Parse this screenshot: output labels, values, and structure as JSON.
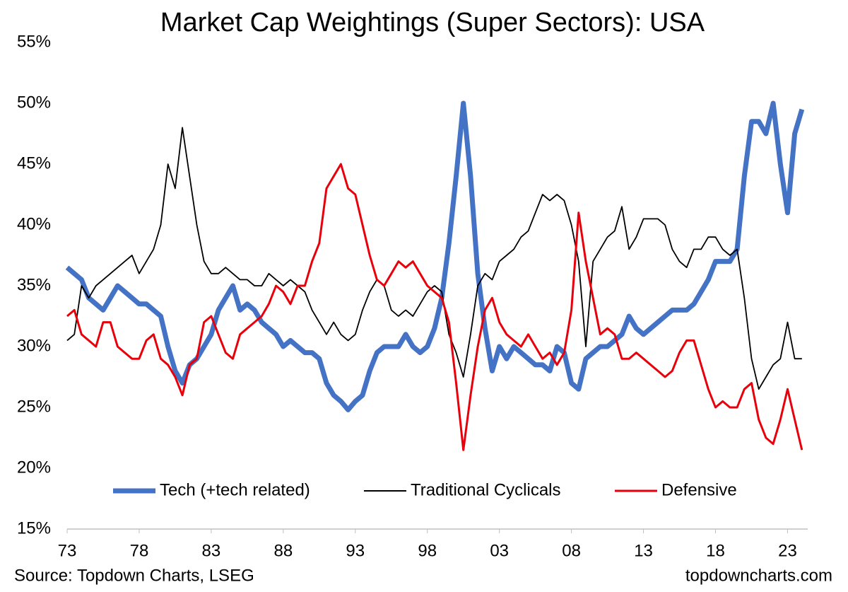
{
  "chart_data": {
    "type": "line",
    "title": "Market Cap Weightings (Super Sectors): USA",
    "source": "Source: Topdown Charts, LSEG",
    "watermark": "topdowncharts.com",
    "x": [
      1973,
      1973.5,
      1974,
      1974.5,
      1975,
      1975.5,
      1976,
      1976.5,
      1977,
      1977.5,
      1978,
      1978.5,
      1979,
      1979.5,
      1980,
      1980.5,
      1981,
      1981.5,
      1982,
      1982.5,
      1983,
      1983.5,
      1984,
      1984.5,
      1985,
      1985.5,
      1986,
      1986.5,
      1987,
      1987.5,
      1988,
      1988.5,
      1989,
      1989.5,
      1990,
      1990.5,
      1991,
      1991.5,
      1992,
      1992.5,
      1993,
      1993.5,
      1994,
      1994.5,
      1995,
      1995.5,
      1996,
      1996.5,
      1997,
      1997.5,
      1998,
      1998.5,
      1999,
      1999.5,
      2000,
      2000.5,
      2001,
      2001.5,
      2002,
      2002.5,
      2003,
      2003.5,
      2004,
      2004.5,
      2005,
      2005.5,
      2006,
      2006.5,
      2007,
      2007.5,
      2008,
      2008.5,
      2009,
      2009.5,
      2010,
      2010.5,
      2011,
      2011.5,
      2012,
      2012.5,
      2013,
      2013.5,
      2014,
      2014.5,
      2015,
      2015.5,
      2016,
      2016.5,
      2017,
      2017.5,
      2018,
      2018.5,
      2019,
      2019.5,
      2020,
      2020.5,
      2021,
      2021.5,
      2022,
      2022.5,
      2023,
      2023.5,
      2024
    ],
    "series": [
      {
        "name": "Tech (+tech related)",
        "color": "#4472c4",
        "width": 7,
        "values": [
          36.5,
          36,
          35.5,
          34,
          33.5,
          33,
          34,
          35,
          34.5,
          34,
          33.5,
          33.5,
          33,
          32.5,
          30,
          28,
          27,
          28.5,
          29,
          30,
          31,
          33,
          34,
          35,
          33,
          33.5,
          33,
          32,
          31.5,
          31,
          30,
          30.5,
          30,
          29.5,
          29.5,
          29,
          27,
          26,
          25.5,
          24.8,
          25.5,
          26,
          28,
          29.5,
          30,
          30,
          30,
          31,
          30,
          29.5,
          30,
          31.5,
          34,
          38.5,
          44,
          50,
          44,
          36,
          31.5,
          28,
          30,
          29,
          30,
          29.5,
          29,
          28.5,
          28.5,
          28,
          30,
          29.5,
          27,
          26.5,
          29,
          29.5,
          30,
          30,
          30.5,
          31,
          32.5,
          31.5,
          31,
          31.5,
          32,
          32.5,
          33,
          33,
          33,
          33.5,
          34.5,
          35.5,
          37,
          37,
          37,
          38,
          44,
          48.5,
          48.5,
          47.5,
          50,
          45,
          41,
          47.5,
          49.5
        ]
      },
      {
        "name": "Traditional Cyclicals",
        "color": "#000000",
        "width": 1.8,
        "values": [
          30.5,
          31,
          35,
          34,
          35,
          35.5,
          36,
          36.5,
          37,
          37.5,
          36,
          37,
          38,
          40,
          45,
          43,
          48,
          44,
          40,
          37,
          36,
          36,
          36.5,
          36,
          35.5,
          35.5,
          35,
          35,
          36,
          35.5,
          35,
          35.5,
          35,
          34.5,
          33,
          32,
          31,
          32,
          31,
          30.5,
          31,
          33,
          34.5,
          35.5,
          35,
          33,
          32.5,
          33,
          32.5,
          33.5,
          34.5,
          35,
          34.5,
          31,
          29.5,
          27.5,
          31,
          35,
          36,
          35.5,
          37,
          37.5,
          38,
          39,
          39.5,
          41,
          42.5,
          42,
          42.5,
          42,
          40,
          37,
          30,
          37,
          38,
          39,
          39.5,
          41.5,
          38,
          39,
          40.5,
          40.5,
          40.5,
          40,
          38,
          37,
          36.5,
          38,
          38,
          39,
          39,
          38,
          37.5,
          38,
          34,
          29,
          26.5,
          27.5,
          28.5,
          29,
          32,
          29,
          29
        ]
      },
      {
        "name": "Defensive",
        "color": "#e8000b",
        "width": 3,
        "values": [
          32.5,
          33,
          31,
          30.5,
          30,
          32,
          32,
          30,
          29.5,
          29,
          29,
          30.5,
          31,
          29,
          28.5,
          27.5,
          26,
          28.5,
          29,
          32,
          32.5,
          31,
          29.5,
          29,
          31,
          31.5,
          32,
          32.5,
          33.5,
          35,
          34.5,
          33.5,
          35,
          35,
          37,
          38.5,
          43,
          44,
          45,
          43,
          42.5,
          40,
          37.5,
          35.5,
          35,
          36,
          37,
          36.5,
          37,
          36,
          35,
          34.5,
          34,
          32,
          27,
          21.5,
          26,
          30,
          33,
          34,
          32,
          31,
          30.5,
          30,
          31,
          30,
          29,
          29.5,
          28.5,
          29.5,
          33,
          41,
          37,
          34,
          31,
          31.5,
          31,
          29,
          29,
          29.5,
          29,
          28.5,
          28,
          27.5,
          28,
          29.5,
          30.5,
          30.5,
          28.5,
          26.5,
          25,
          25.5,
          25,
          25,
          26.5,
          27,
          24,
          22.5,
          22,
          24,
          26.5,
          24,
          21.5
        ]
      }
    ],
    "xlim": [
      1973,
      2024.4
    ],
    "xticks": [
      {
        "value": 1973,
        "label": "73"
      },
      {
        "value": 1978,
        "label": "78"
      },
      {
        "value": 1983,
        "label": "83"
      },
      {
        "value": 1988,
        "label": "88"
      },
      {
        "value": 1993,
        "label": "93"
      },
      {
        "value": 1998,
        "label": "98"
      },
      {
        "value": 2003,
        "label": "03"
      },
      {
        "value": 2008,
        "label": "08"
      },
      {
        "value": 2013,
        "label": "13"
      },
      {
        "value": 2018,
        "label": "18"
      },
      {
        "value": 2023,
        "label": "23"
      }
    ],
    "ylim": [
      15,
      55
    ],
    "yticks": [
      {
        "value": 15,
        "label": "15%"
      },
      {
        "value": 20,
        "label": "20%"
      },
      {
        "value": 25,
        "label": "25%"
      },
      {
        "value": 30,
        "label": "30%"
      },
      {
        "value": 35,
        "label": "35%"
      },
      {
        "value": 40,
        "label": "40%"
      },
      {
        "value": 45,
        "label": "45%"
      },
      {
        "value": 50,
        "label": "50%"
      },
      {
        "value": 55,
        "label": "55%"
      }
    ],
    "legend": "bottom"
  }
}
